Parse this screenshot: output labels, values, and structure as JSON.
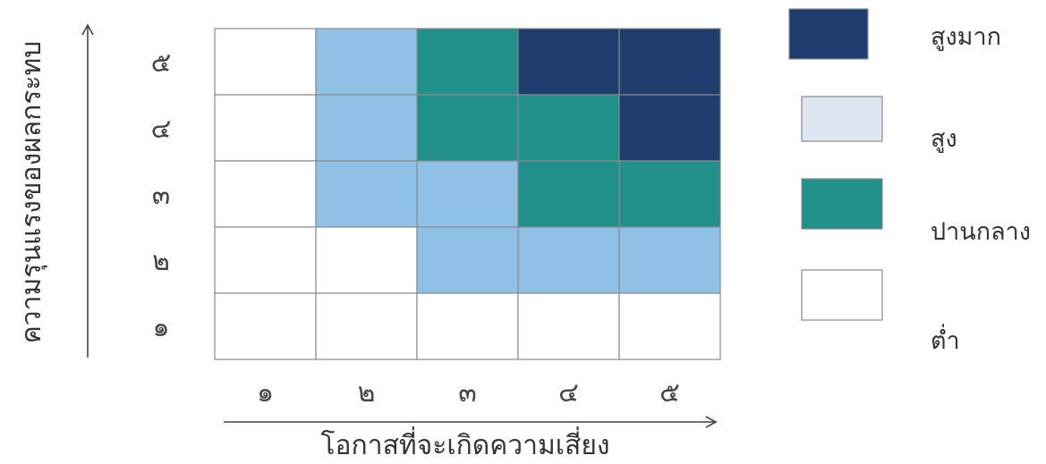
{
  "chart_data": {
    "type": "heatmap",
    "xlabel": "โอกาสที่จะเกิดความเสี่ยง",
    "ylabel": "ความรุนแรงของผลกระทบ",
    "x_ticks": [
      "๑",
      "๒",
      "๓",
      "๔",
      "๕"
    ],
    "y_ticks": [
      "๕",
      "๔",
      "๓",
      "๒",
      "๑"
    ],
    "levels": [
      {
        "key": "very_high",
        "label": "สูงมาก",
        "color": "#1f3c6e"
      },
      {
        "key": "high",
        "label": "สูง",
        "color": "#8fc1e6"
      },
      {
        "key": "medium",
        "label": "ปานกลาง",
        "color": "#218f8a"
      },
      {
        "key": "low",
        "label": "ต่ำ",
        "color": "#ffffff"
      }
    ],
    "legend_swatch_colors": [
      "#1f3c6e",
      "#dde6f1",
      "#218f8a",
      "#ffffff"
    ],
    "legend_position": "right",
    "grid": [
      [
        "low",
        "high",
        "medium",
        "very_high",
        "very_high"
      ],
      [
        "low",
        "high",
        "medium",
        "medium",
        "very_high"
      ],
      [
        "low",
        "high",
        "high",
        "medium",
        "medium"
      ],
      [
        "low",
        "low",
        "high",
        "high",
        "high"
      ],
      [
        "low",
        "low",
        "low",
        "low",
        "low"
      ]
    ]
  }
}
